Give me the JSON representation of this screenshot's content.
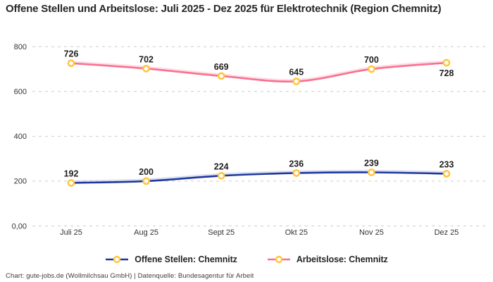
{
  "title": "Offene Stellen und Arbeitslose: Juli 2025 - Dez 2025 für Elektrotechnik (Region Chemnitz)",
  "footer": "Chart: gute-jobs.de (Wollmilchsau GmbH) | Datenquelle: Bundesagentur für Arbeit",
  "colors": {
    "background": "#ffffff",
    "gridline": "#cccccc",
    "title_text": "#262626",
    "axis_text": "#333333",
    "data_label_text": "#1f1f1f",
    "marker_stroke": "#ffc53d",
    "marker_fill": "#ffffff",
    "open_positions_line": "#20389b",
    "unemployed_line": "#f8718f"
  },
  "chart_data": {
    "type": "line",
    "title": "Offene Stellen und Arbeitslose: Juli 2025 - Dez 2025 für Elektrotechnik (Region Chemnitz)",
    "categories": [
      "Juli 25",
      "Aug 25",
      "Sept 25",
      "Okt 25",
      "Nov 25",
      "Dez 25"
    ],
    "series": [
      {
        "name": "Offene Stellen: Chemnitz",
        "color": "#20389b",
        "glow": "#b9c4ea",
        "values": [
          192,
          200,
          224,
          236,
          239,
          233
        ],
        "labels_below_indices": []
      },
      {
        "name": "Arbeitslose: Chemnitz",
        "color": "#f8718f",
        "glow": "#fdc2cf",
        "values": [
          726,
          702,
          669,
          645,
          700,
          728
        ],
        "labels_below_indices": [
          5
        ]
      }
    ],
    "ylim": [
      0,
      800
    ],
    "yticks": [
      {
        "value": 0,
        "label": "0,00"
      },
      {
        "value": 200,
        "label": "200"
      },
      {
        "value": 400,
        "label": "400"
      },
      {
        "value": 600,
        "label": "600"
      },
      {
        "value": 800,
        "label": "800"
      }
    ],
    "grid": "dashed-horizontal",
    "legend_position": "bottom",
    "marker_style": "ring"
  }
}
